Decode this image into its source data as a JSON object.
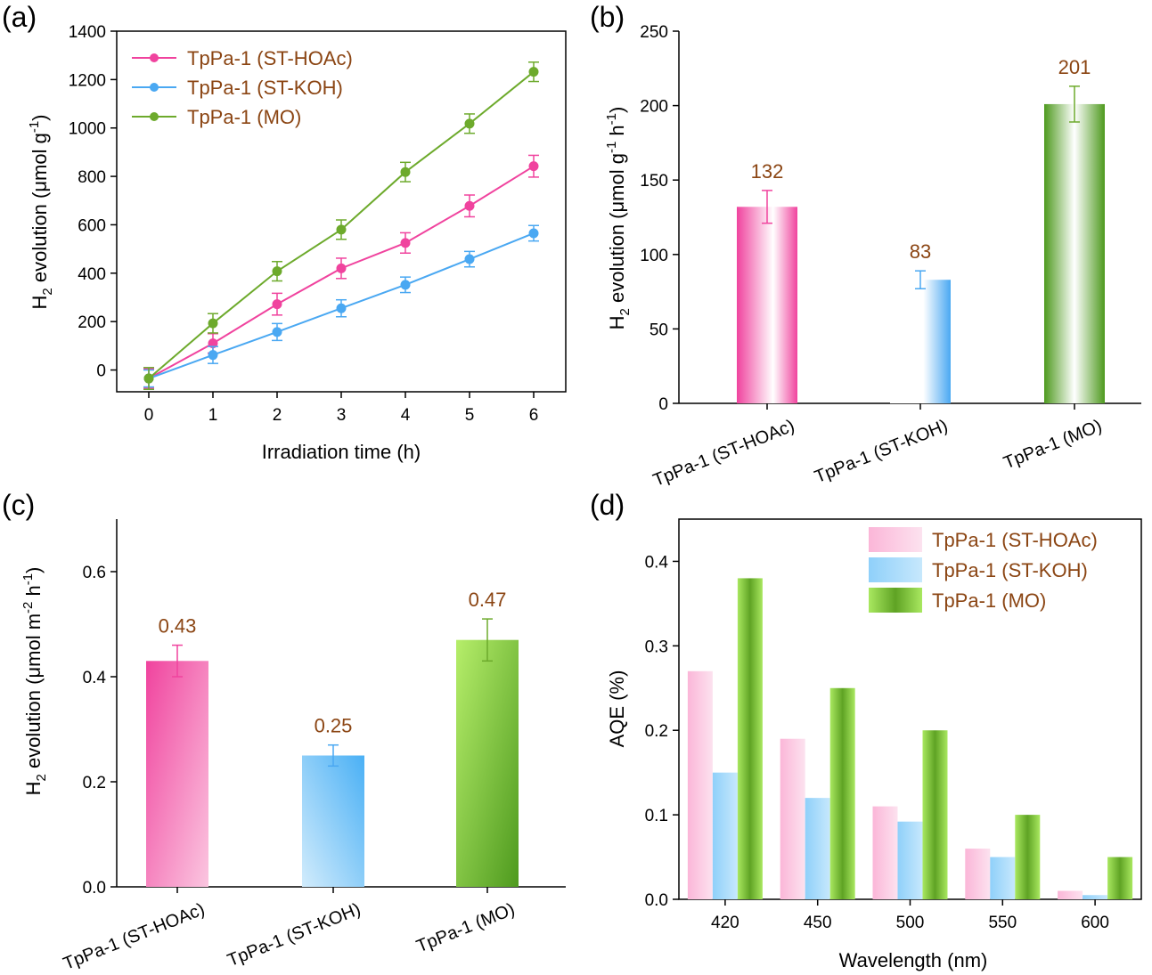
{
  "colors": {
    "pink": "#F0439E",
    "blue": "#4AA8F2",
    "green": "#6DAA2C",
    "label_brown": "#8B4513"
  },
  "panels": {
    "a": {
      "label": "(a)",
      "xlabel": "Irradiation time (h)",
      "ylabel": "H2 evolution (μmol g-1)",
      "ylabel_main": "H",
      "ylabel_sub": "2",
      "ylabel_mid": " evolution (μmol g",
      "ylabel_sup": "-1",
      "ylabel_end": ")"
    },
    "b": {
      "label": "(b)",
      "ylabel_main": "H",
      "ylabel_sub": "2",
      "ylabel_mid": " evolution (μmol g",
      "ylabel_sup1": "-1",
      "ylabel_mid2": " h",
      "ylabel_sup2": "-1",
      "ylabel_end": ")"
    },
    "c": {
      "label": "(c)",
      "ylabel_main": "H",
      "ylabel_sub": "2",
      "ylabel_mid": " evolution (μmol m",
      "ylabel_sup1": "-2",
      "ylabel_mid2": " h",
      "ylabel_sup2": "-1",
      "ylabel_end": ")"
    },
    "d": {
      "label": "(d)",
      "xlabel": "Wavelength (nm)",
      "ylabel": "AQE (%)"
    }
  },
  "chart_data": [
    {
      "panel": "a",
      "type": "line",
      "x": [
        0,
        1,
        2,
        3,
        4,
        5,
        6
      ],
      "xlim": [
        -0.5,
        6.5
      ],
      "ylim": [
        -90,
        1400
      ],
      "yticks": [
        0,
        200,
        400,
        600,
        800,
        1000,
        1200,
        1400
      ],
      "legend_position": "top-left",
      "series": [
        {
          "name": "TpPa-1 (ST-HOAc)",
          "color": "pink",
          "values": [
            -35,
            110,
            272,
            420,
            525,
            678,
            842
          ],
          "errors": [
            40,
            40,
            45,
            42,
            42,
            45,
            45
          ]
        },
        {
          "name": "TpPa-1 (ST-KOH)",
          "color": "blue",
          "values": [
            -35,
            62,
            157,
            255,
            352,
            458,
            565
          ],
          "errors": [
            35,
            35,
            35,
            35,
            32,
            32,
            32
          ]
        },
        {
          "name": "TpPa-1 (MO)",
          "color": "green",
          "values": [
            -35,
            193,
            408,
            580,
            818,
            1018,
            1232
          ],
          "errors": [
            45,
            40,
            40,
            40,
            40,
            40,
            40
          ]
        }
      ]
    },
    {
      "panel": "b",
      "type": "bar",
      "categories": [
        "TpPa-1 (ST-HOAc)",
        "TpPa-1 (ST-KOH)",
        "TpPa-1 (MO)"
      ],
      "values": [
        132,
        83,
        201
      ],
      "value_labels": [
        "132",
        "83",
        "201"
      ],
      "errors": [
        11,
        6,
        12
      ],
      "bar_colors": [
        "pink",
        "blue",
        "green"
      ],
      "ylim": [
        0,
        250
      ],
      "yticks": [
        0,
        50,
        100,
        150,
        200,
        250
      ]
    },
    {
      "panel": "c",
      "type": "bar",
      "categories": [
        "TpPa-1 (ST-HOAc)",
        "TpPa-1 (ST-KOH)",
        "TpPa-1 (MO)"
      ],
      "values": [
        0.43,
        0.25,
        0.47
      ],
      "value_labels": [
        "0.43",
        "0.25",
        "0.47"
      ],
      "errors": [
        0.03,
        0.02,
        0.04
      ],
      "bar_colors": [
        "pink",
        "blue",
        "green"
      ],
      "ylim": [
        0,
        0.7
      ],
      "yticks": [
        "0.0",
        "0.2",
        "0.4",
        "0.6"
      ],
      "ytick_values": [
        0,
        0.2,
        0.4,
        0.6
      ]
    },
    {
      "panel": "d",
      "type": "bar",
      "categories": [
        "420",
        "450",
        "500",
        "550",
        "600"
      ],
      "ylim": [
        0,
        0.45
      ],
      "yticks": [
        "0.0",
        "0.1",
        "0.2",
        "0.3",
        "0.4"
      ],
      "ytick_values": [
        0,
        0.1,
        0.2,
        0.3,
        0.4
      ],
      "legend_position": "top-right",
      "series": [
        {
          "name": "TpPa-1 (ST-HOAc)",
          "color": "pink",
          "values": [
            0.27,
            0.19,
            0.11,
            0.06,
            0.01
          ]
        },
        {
          "name": "TpPa-1 (ST-KOH)",
          "color": "blue",
          "values": [
            0.15,
            0.12,
            0.092,
            0.05,
            0.005
          ]
        },
        {
          "name": "TpPa-1 (MO)",
          "color": "green",
          "values": [
            0.38,
            0.25,
            0.2,
            0.1,
            0.05
          ]
        }
      ]
    }
  ]
}
